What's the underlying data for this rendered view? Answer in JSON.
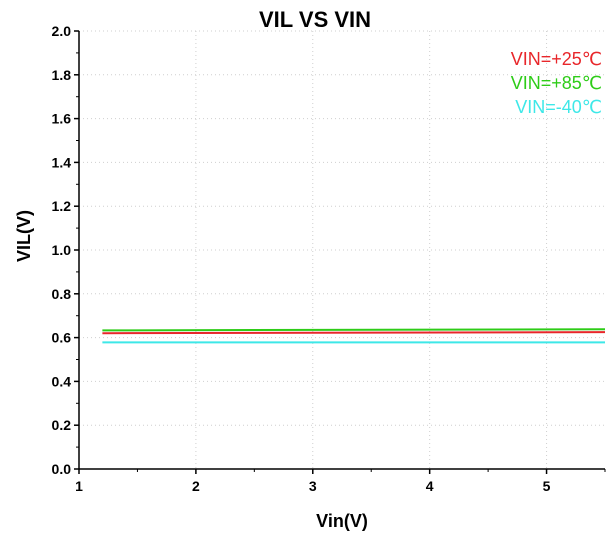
{
  "chart_data": {
    "type": "line",
    "title": "VIL VS VIN",
    "xlabel": "Vin(V)",
    "ylabel": "VIL(V)",
    "xlim": [
      1,
      5.5
    ],
    "ylim": [
      0,
      2.0
    ],
    "xticks": [
      "1",
      "2",
      "3",
      "4",
      "5"
    ],
    "xtick_values": [
      1,
      2,
      3,
      4,
      5
    ],
    "yticks": [
      "0.0",
      "0.2",
      "0.4",
      "0.6",
      "0.8",
      "1.0",
      "1.2",
      "1.4",
      "1.6",
      "1.8",
      "2.0"
    ],
    "ytick_values": [
      0,
      0.2,
      0.4,
      0.6,
      0.8,
      1.0,
      1.2,
      1.4,
      1.6,
      1.8,
      2.0
    ],
    "grid": true,
    "legend_position": "top-right",
    "series": [
      {
        "name": "VIN=+25℃",
        "color": "#e8262a",
        "x": [
          1.2,
          5.5
        ],
        "y": [
          0.62,
          0.625
        ]
      },
      {
        "name": "VIN=+85℃",
        "color": "#2ecc18",
        "x": [
          1.2,
          5.5
        ],
        "y": [
          0.633,
          0.638
        ]
      },
      {
        "name": "VIN=-40℃",
        "color": "#3ee8e8",
        "x": [
          1.2,
          5.5
        ],
        "y": [
          0.578,
          0.578
        ]
      }
    ]
  }
}
